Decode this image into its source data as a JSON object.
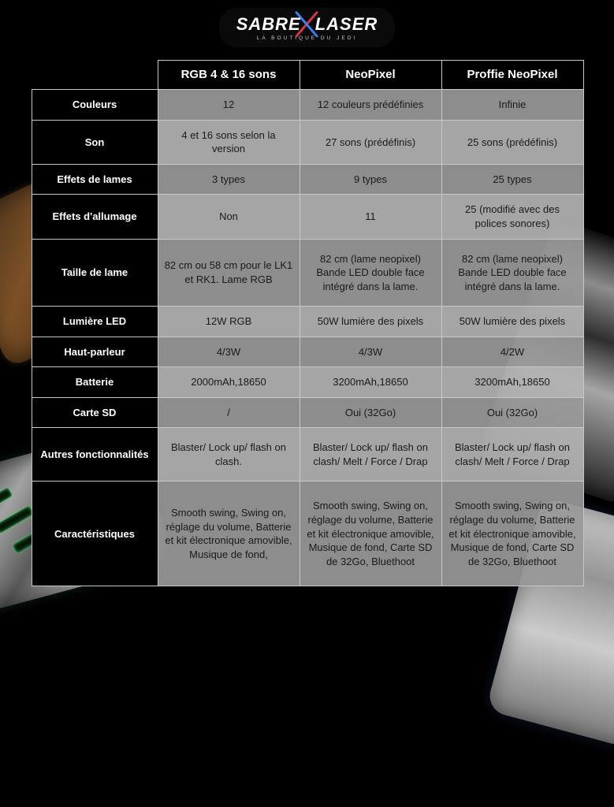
{
  "logo": {
    "line1_a": "SABRE",
    "line1_b": "LASER",
    "sub": "LA BOUTIQUE DU JEDI",
    "blade_color_1": "#e63946",
    "blade_color_2": "#3a86ff"
  },
  "table": {
    "header_bg": "#000000",
    "header_fg": "#ffffff",
    "rowlabel_bg": "#000000",
    "rowlabel_fg": "#ffffff",
    "shade_a": "#999999",
    "shade_b": "#b3b3b3",
    "border": "#c8c8c8",
    "font_size_header": 15,
    "font_size_cell": 13,
    "columns": [
      "RGB 4 & 16 sons",
      "NeoPixel",
      "Proffie NeoPixel"
    ],
    "rows": [
      {
        "label": "Couleurs",
        "cells": [
          "12",
          "12 couleurs prédéfinies",
          "Infinie"
        ]
      },
      {
        "label": "Son",
        "cells": [
          "4 et 16 sons selon la version",
          "27 sons (prédéfinis)",
          "25 sons (prédéfinis)"
        ]
      },
      {
        "label": "Effets de lames",
        "cells": [
          "3 types",
          "9 types",
          "25 types"
        ]
      },
      {
        "label": "Effets d'allumage",
        "cells": [
          "Non",
          "11",
          "25 (modifié avec des polices sonores)"
        ]
      },
      {
        "label": "Taille de lame",
        "cells": [
          "82 cm ou 58 cm pour le LK1 et RK1. Lame RGB",
          "82 cm (lame neopixel) Bande LED double face intégré dans la lame.",
          "82 cm (lame neopixel) Bande LED double face intégré dans la lame."
        ]
      },
      {
        "label": "Lumière LED",
        "cells": [
          "12W RGB",
          "50W lumière des pixels",
          "50W lumière des pixels"
        ]
      },
      {
        "label": "Haut-parleur",
        "cells": [
          "4/3W",
          "4/3W",
          "4/2W"
        ]
      },
      {
        "label": "Batterie",
        "cells": [
          "2000mAh,18650",
          "3200mAh,18650",
          "3200mAh,18650"
        ]
      },
      {
        "label": "Carte SD",
        "cells": [
          "/",
          "Oui (32Go)",
          "Oui (32Go)"
        ]
      },
      {
        "label": "Autres fonctionnalités",
        "cells": [
          "Blaster/ Lock up/ flash on clash.",
          "Blaster/ Lock up/ flash on clash/ Melt / Force / Drap",
          "Blaster/ Lock up/ flash on clash/ Melt / Force / Drap"
        ]
      },
      {
        "label": "Caractéristiques",
        "cells": [
          "Smooth swing, Swing on, réglage du volume, Batterie et kit électronique  amovible, Musique de fond,",
          "Smooth swing, Swing on, réglage du volume, Batterie et kit électronique  amovible, Musique de fond, Carte SD de 32Go, Bluethoot",
          "Smooth swing, Swing on, réglage du volume, Batterie et kit électronique  amovible, Musique de fond, Carte SD de 32Go, Bluethoot"
        ]
      }
    ],
    "row_shades": [
      "a",
      "b",
      "a",
      "b",
      "a",
      "b",
      "a",
      "b",
      "a",
      "b",
      "a"
    ],
    "row_heights": [
      "",
      "",
      "",
      "",
      "tall",
      "",
      "",
      "",
      "",
      "tall",
      "xtall"
    ]
  }
}
